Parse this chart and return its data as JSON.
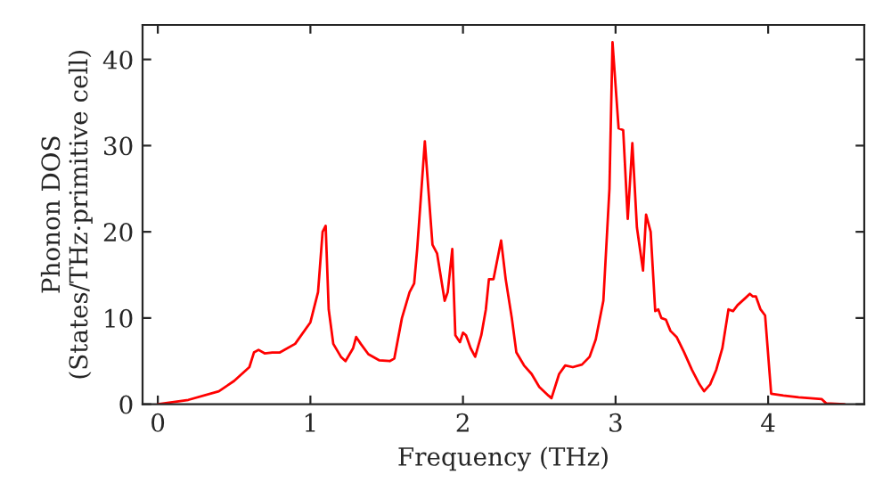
{
  "chart_data": {
    "type": "line",
    "xlabel": "Frequency (THz)",
    "ylabel": "Phonon DOS\n(States/THz·primitive cell)",
    "x": [
      0,
      0.2,
      0.4,
      0.5,
      0.6,
      0.63,
      0.66,
      0.7,
      0.75,
      0.8,
      0.9,
      1.0,
      1.05,
      1.08,
      1.1,
      1.12,
      1.15,
      1.2,
      1.23,
      1.28,
      1.3,
      1.33,
      1.38,
      1.45,
      1.52,
      1.55,
      1.6,
      1.65,
      1.68,
      1.7,
      1.75,
      1.8,
      1.83,
      1.88,
      1.9,
      1.93,
      1.95,
      1.98,
      2.0,
      2.02,
      2.05,
      2.08,
      2.12,
      2.15,
      2.17,
      2.2,
      2.25,
      2.28,
      2.32,
      2.35,
      2.4,
      2.45,
      2.5,
      2.56,
      2.58,
      2.63,
      2.67,
      2.72,
      2.78,
      2.83,
      2.87,
      2.92,
      2.96,
      2.98,
      3.02,
      3.05,
      3.08,
      3.11,
      3.14,
      3.18,
      3.2,
      3.23,
      3.26,
      3.28,
      3.3,
      3.33,
      3.36,
      3.4,
      3.45,
      3.5,
      3.55,
      3.58,
      3.62,
      3.66,
      3.7,
      3.74,
      3.77,
      3.8,
      3.85,
      3.88,
      3.9,
      3.92,
      3.95,
      3.98,
      4.02,
      4.1,
      4.2,
      4.35,
      4.38,
      4.5
    ],
    "series": [
      {
        "color": "#ff0000",
        "values": [
          0,
          0.5,
          1.5,
          2.7,
          4.3,
          6,
          6.3,
          5.9,
          6,
          6,
          7,
          9.5,
          13,
          20,
          20.7,
          11,
          7,
          5.5,
          5,
          6.5,
          7.8,
          7,
          5.8,
          5.1,
          5,
          5.3,
          10,
          13,
          14,
          18,
          30.5,
          18.5,
          17.5,
          12,
          13,
          18,
          8,
          7.2,
          8.3,
          8,
          6.5,
          5.5,
          8,
          11,
          14.5,
          14.5,
          19,
          14.5,
          10,
          6,
          4.5,
          3.5,
          2,
          1,
          0.7,
          3.5,
          4.5,
          4.3,
          4.6,
          5.5,
          7.5,
          12,
          25,
          42,
          32,
          31.8,
          21.5,
          30.3,
          20.5,
          15.5,
          22,
          20,
          10.8,
          11,
          10,
          9.8,
          8.5,
          7.8,
          6,
          4,
          2.3,
          1.5,
          2.3,
          4,
          6.5,
          11,
          10.8,
          11.5,
          12.3,
          12.8,
          12.5,
          12.5,
          11,
          10.3,
          1.2,
          1,
          0.8,
          0.6,
          0.1,
          0
        ]
      }
    ],
    "xlim": [
      -0.1,
      4.63
    ],
    "ylim": [
      0,
      44
    ],
    "xticks": [
      0,
      1,
      2,
      3,
      4
    ],
    "yticks": [
      0,
      10,
      20,
      30,
      40
    ],
    "grid": false,
    "legend": false,
    "line_style": "solid",
    "marker": "none"
  }
}
